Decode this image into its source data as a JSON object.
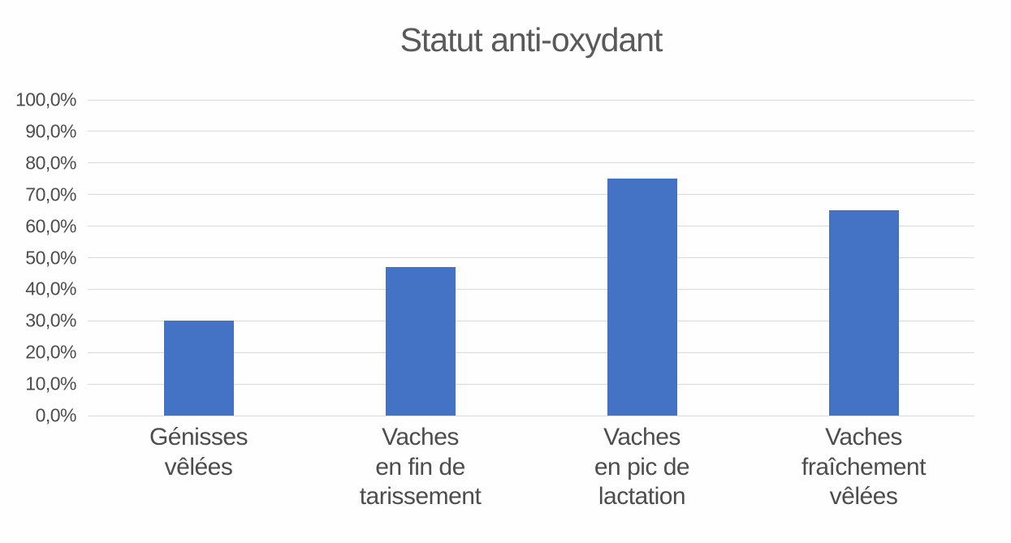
{
  "title": "Statut anti-oxydant",
  "colors": {
    "bar": "#4472C4",
    "gridline": "#D9D9D9",
    "text": "#4D4D4D",
    "title": "#595959",
    "background": "#FEFEFE"
  },
  "chart_data": {
    "type": "bar",
    "title": "Statut anti-oxydant",
    "categories": [
      "Génisses vêlées",
      "Vaches en fin de tarissement",
      "Vaches en pic de lactation",
      "Vaches fraîchement vêlées"
    ],
    "category_lines": [
      [
        "Génisses",
        "vêlées"
      ],
      [
        "Vaches",
        "en fin de",
        "tarissement"
      ],
      [
        "Vaches",
        "en pic de",
        "lactation"
      ],
      [
        "Vaches",
        "fraîchement",
        "vêlées"
      ]
    ],
    "values": [
      30,
      47,
      75,
      65
    ],
    "value_unit": "%",
    "number_format": "french-decimal-comma",
    "xlabel": "",
    "ylabel": "",
    "ylim": [
      0,
      100
    ],
    "grid": true,
    "legend": "none",
    "y_ticks": [
      {
        "value": 0,
        "label": "0,0%"
      },
      {
        "value": 10,
        "label": "10,0%"
      },
      {
        "value": 20,
        "label": "20,0%"
      },
      {
        "value": 30,
        "label": "30,0%"
      },
      {
        "value": 40,
        "label": "40,0%"
      },
      {
        "value": 50,
        "label": "50,0%"
      },
      {
        "value": 60,
        "label": "60,0%"
      },
      {
        "value": 70,
        "label": "70,0%"
      },
      {
        "value": 80,
        "label": "80,0%"
      },
      {
        "value": 90,
        "label": "90,0%"
      },
      {
        "value": 100,
        "label": "100,0%"
      }
    ]
  }
}
